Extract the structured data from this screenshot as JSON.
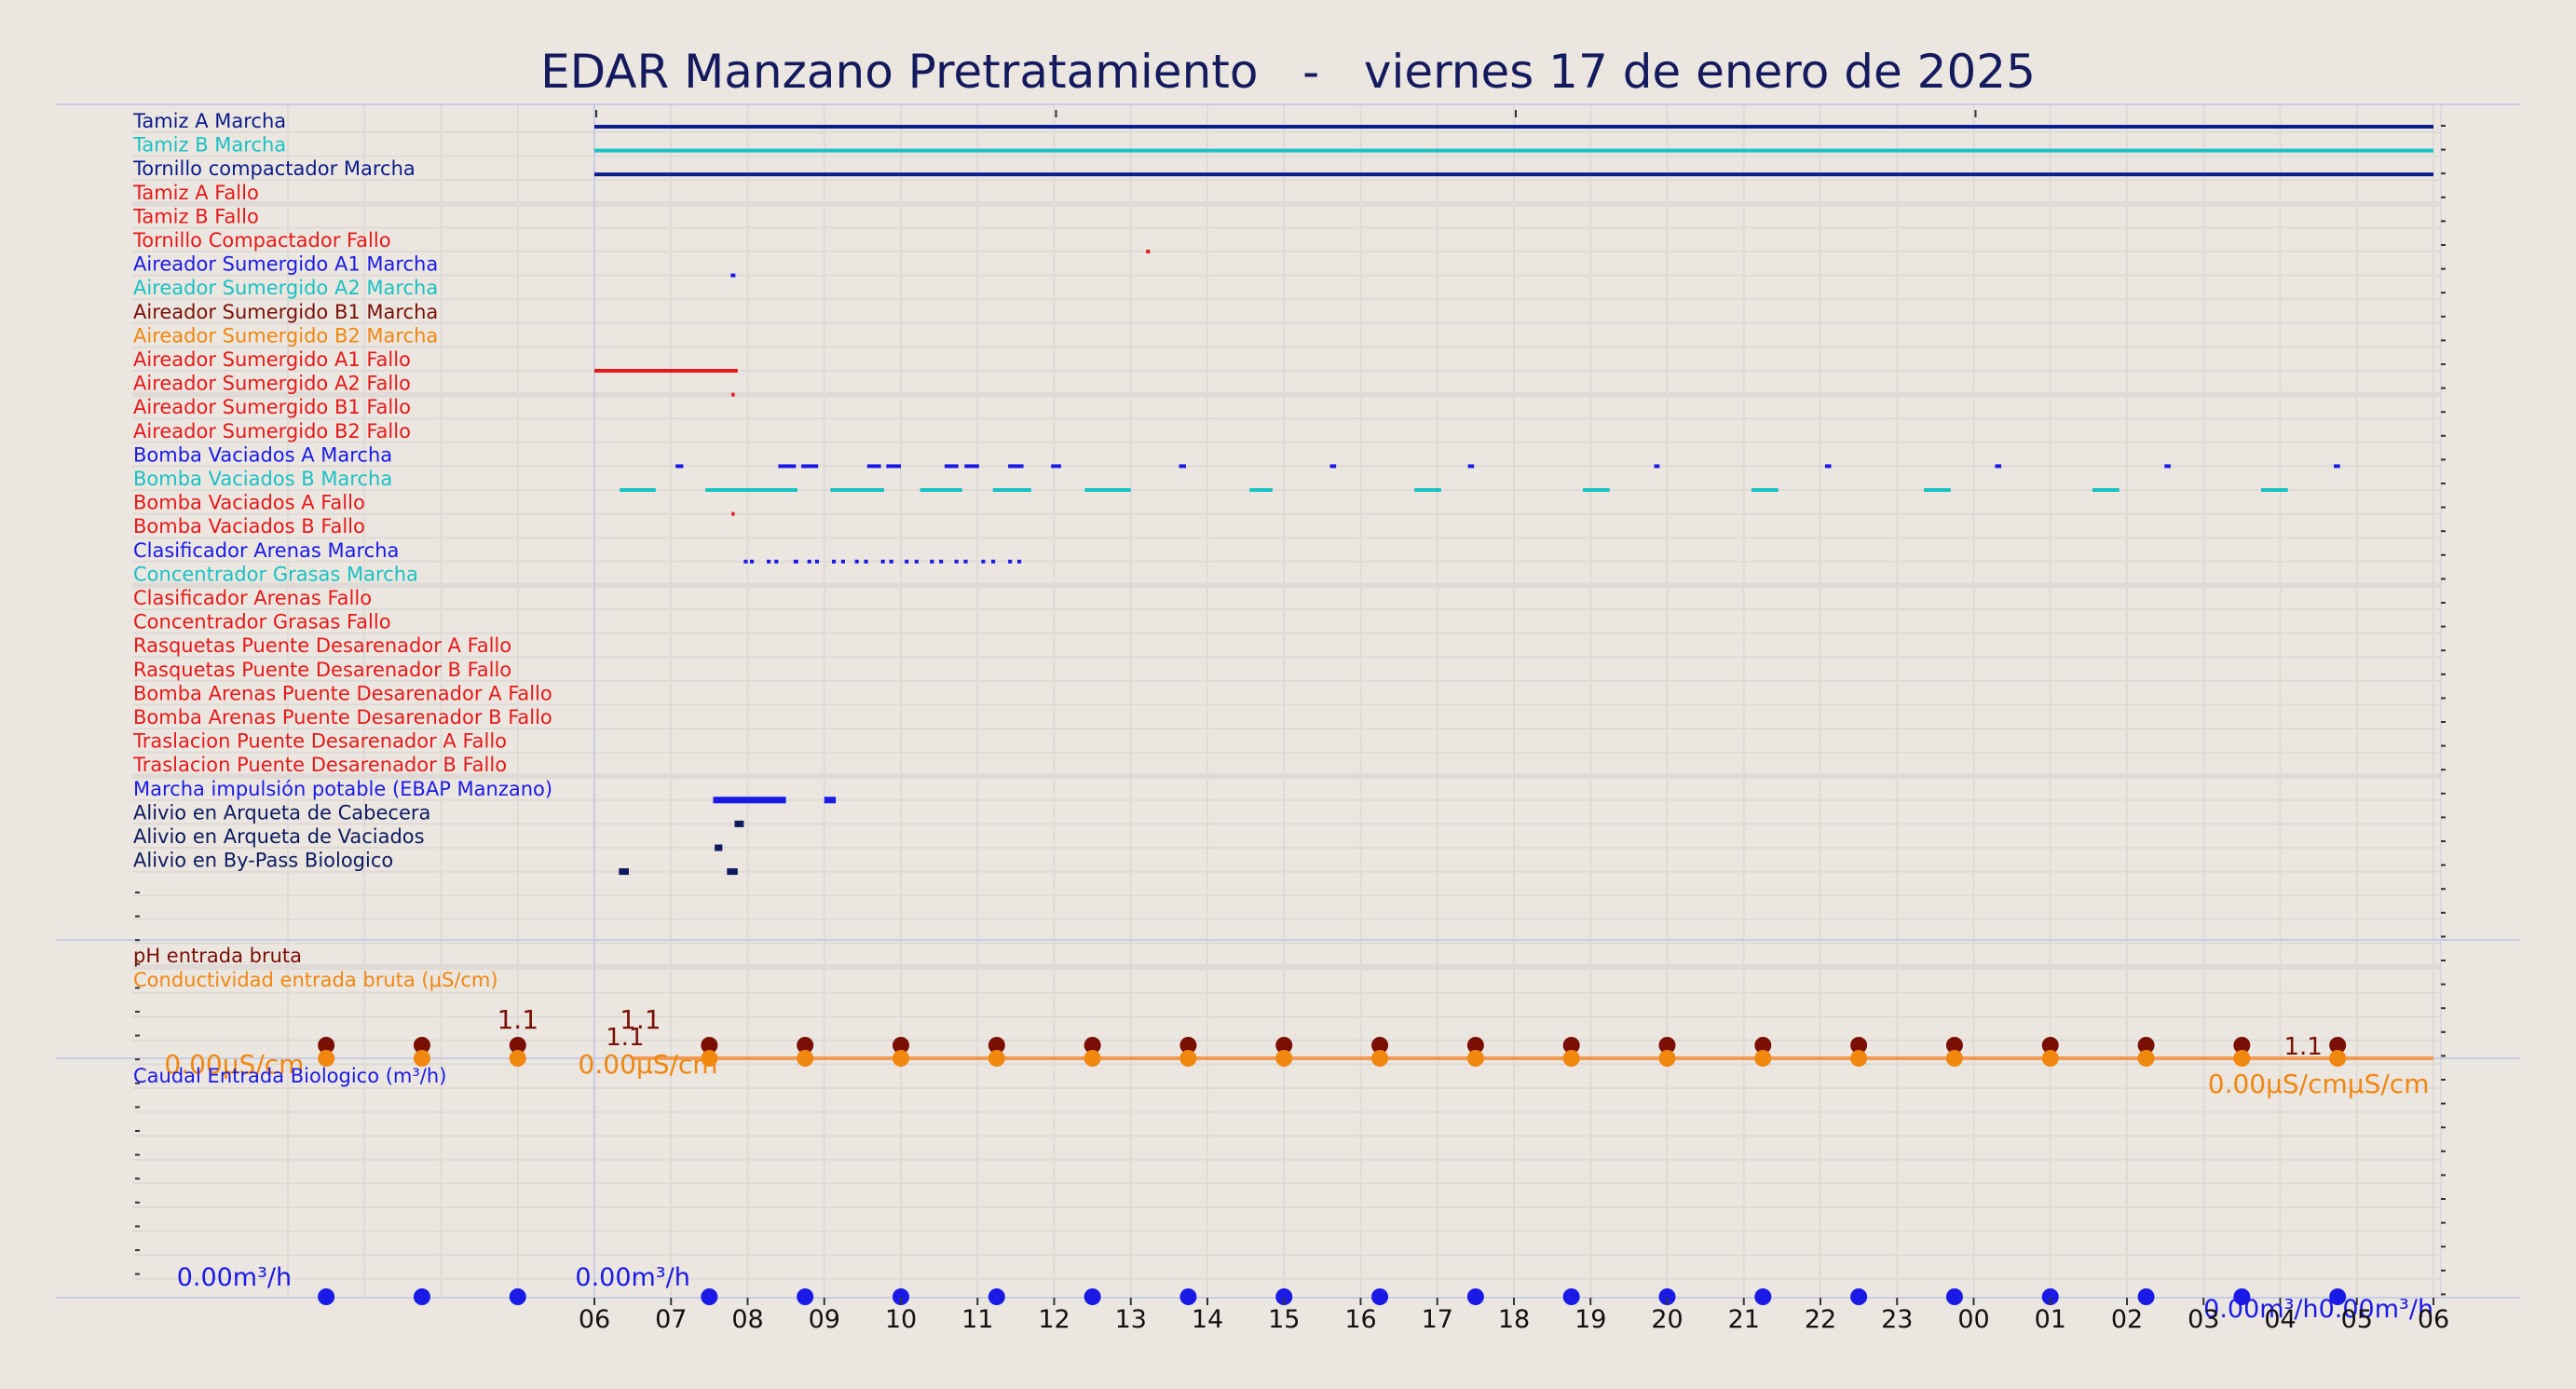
{
  "title": "EDAR Manzano Pretratamiento   -   viernes 17 de enero de 2025",
  "colors": {
    "background": "#ebe6e0",
    "grid": "#dfdad5",
    "frame": "#c8cde6",
    "title": "#141a5e",
    "navy": "#0b1c8c",
    "blue": "#1a1ae6",
    "cyan": "#19c2c4",
    "maroon": "#7a0f06",
    "orange": "#f0870f",
    "red": "#e61919",
    "dark_navy": "#0d1a60"
  },
  "chart_data": [
    {
      "type": "digital-timeline",
      "x_ticks": [
        "06",
        "07",
        "08",
        "09",
        "10",
        "11",
        "12",
        "13",
        "14",
        "15",
        "16",
        "17",
        "18",
        "19",
        "20",
        "21",
        "22",
        "23",
        "00",
        "01",
        "02",
        "03",
        "04",
        "05",
        "06"
      ],
      "signals": [
        {
          "label": "Tamiz A Marcha",
          "color": "#0b1c8c",
          "on": [
            [
              0.0,
              24.0
            ]
          ]
        },
        {
          "label": "Tamiz B Marcha",
          "color": "#19c2c4",
          "on": [
            [
              0.0,
              24.0
            ]
          ]
        },
        {
          "label": "Tornillo compactador Marcha",
          "color": "#0b1c8c",
          "on": [
            [
              0.0,
              24.0
            ]
          ]
        },
        {
          "label": "Tamiz A Fallo",
          "color": "#e61919",
          "on": []
        },
        {
          "label": "Tamiz B Fallo",
          "color": "#e61919",
          "on": []
        },
        {
          "label": "Tornillo Compactador Fallo",
          "color": "#e61919",
          "on": [
            [
              7.2,
              7.25
            ]
          ]
        },
        {
          "label": "Aireador Sumergido A1 Marcha",
          "color": "#1a1ae6",
          "on": [
            [
              1.78,
              1.84
            ]
          ]
        },
        {
          "label": "Aireador Sumergido A2 Marcha",
          "color": "#19c2c4",
          "on": []
        },
        {
          "label": "Aireador Sumergido B1 Marcha",
          "color": "#7a0f06",
          "on": []
        },
        {
          "label": "Aireador Sumergido B2 Marcha",
          "color": "#f0870f",
          "on": []
        },
        {
          "label": "Aireador Sumergido A1 Fallo",
          "color": "#e61919",
          "on": [
            [
              0.0,
              1.87
            ]
          ]
        },
        {
          "label": "Aireador Sumergido A2 Fallo",
          "color": "#e61919",
          "on": [
            [
              1.79,
              1.83
            ]
          ]
        },
        {
          "label": "Aireador Sumergido B1 Fallo",
          "color": "#e61919",
          "on": []
        },
        {
          "label": "Aireador Sumergido B2 Fallo",
          "color": "#e61919",
          "on": []
        },
        {
          "label": "Bomba Vaciados A Marcha",
          "color": "#1a1ae6",
          "on": [
            [
              1.06,
              1.16
            ],
            [
              2.4,
              2.63
            ],
            [
              2.7,
              2.92
            ],
            [
              3.56,
              3.74
            ],
            [
              3.81,
              4.0
            ],
            [
              4.57,
              4.75
            ],
            [
              4.83,
              5.02
            ],
            [
              5.4,
              5.6
            ],
            [
              5.96,
              6.09
            ],
            [
              7.63,
              7.72
            ],
            [
              9.6,
              9.68
            ],
            [
              11.4,
              11.48
            ],
            [
              13.83,
              13.9
            ],
            [
              16.06,
              16.14
            ],
            [
              18.28,
              18.36
            ],
            [
              20.49,
              20.57
            ],
            [
              22.7,
              22.78
            ]
          ]
        },
        {
          "label": "Bomba Vaciados B Marcha",
          "color": "#19c2c4",
          "on": [
            [
              0.33,
              0.8
            ],
            [
              1.45,
              2.65
            ],
            [
              3.08,
              3.78
            ],
            [
              4.25,
              4.8
            ],
            [
              5.2,
              5.7
            ],
            [
              6.4,
              7.0
            ],
            [
              8.55,
              8.85
            ],
            [
              10.7,
              11.05
            ],
            [
              12.9,
              13.25
            ],
            [
              15.1,
              15.45
            ],
            [
              17.35,
              17.7
            ],
            [
              19.55,
              19.9
            ],
            [
              21.75,
              22.1
            ]
          ]
        },
        {
          "label": "Bomba Vaciados A Fallo",
          "color": "#e61919",
          "on": [
            [
              1.79,
              1.83
            ]
          ]
        },
        {
          "label": "Bomba Vaciados B Fallo",
          "color": "#e61919",
          "on": []
        },
        {
          "label": "Clasificador Arenas Marcha",
          "color": "#1a1ae6",
          "on": [
            [
              1.95,
              2.0
            ],
            [
              2.03,
              2.08
            ],
            [
              2.25,
              2.3
            ],
            [
              2.35,
              2.4
            ],
            [
              2.6,
              2.66
            ],
            [
              2.78,
              2.83
            ],
            [
              2.88,
              2.93
            ],
            [
              3.1,
              3.15
            ],
            [
              3.22,
              3.27
            ],
            [
              3.4,
              3.45
            ],
            [
              3.52,
              3.57
            ],
            [
              3.74,
              3.79
            ],
            [
              3.85,
              3.9
            ],
            [
              4.05,
              4.1
            ],
            [
              4.18,
              4.23
            ],
            [
              4.38,
              4.43
            ],
            [
              4.5,
              4.55
            ],
            [
              4.7,
              4.75
            ],
            [
              4.82,
              4.87
            ],
            [
              5.05,
              5.1
            ],
            [
              5.18,
              5.23
            ],
            [
              5.4,
              5.45
            ],
            [
              5.52,
              5.57
            ]
          ]
        },
        {
          "label": "Concentrador Grasas Marcha",
          "color": "#19c2c4",
          "on": []
        },
        {
          "label": "Clasificador Arenas Fallo",
          "color": "#e61919",
          "on": []
        },
        {
          "label": "Concentrador Grasas Fallo",
          "color": "#e61919",
          "on": []
        },
        {
          "label": "Rasquetas Puente Desarenador A Fallo",
          "color": "#e61919",
          "on": []
        },
        {
          "label": "Rasquetas Puente Desarenador B Fallo",
          "color": "#e61919",
          "on": []
        },
        {
          "label": "Bomba Arenas Puente Desarenador A Fallo",
          "color": "#e61919",
          "on": []
        },
        {
          "label": "Bomba Arenas Puente Desarenador B Fallo",
          "color": "#e61919",
          "on": []
        },
        {
          "label": "Traslacion Puente Desarenador A Fallo",
          "color": "#e61919",
          "on": []
        },
        {
          "label": "Traslacion Puente Desarenador B Fallo",
          "color": "#e61919",
          "on": []
        },
        {
          "label": "Marcha impulsión potable (EBAP Manzano)",
          "color": "#1a1ae6",
          "on": [
            [
              1.55,
              2.5
            ],
            [
              3.0,
              3.15
            ]
          ]
        },
        {
          "label": "Alivio en Arqueta de Cabecera",
          "color": "#0d1a60",
          "on": [
            [
              1.83,
              1.95
            ]
          ]
        },
        {
          "label": "Alivio en Arqueta de Vaciados",
          "color": "#0d1a60",
          "on": [
            [
              1.57,
              1.67
            ]
          ]
        },
        {
          "label": "Alivio en By-Pass Biologico",
          "color": "#0d1a60",
          "on": [
            [
              0.32,
              0.45
            ],
            [
              1.73,
              1.87
            ]
          ]
        }
      ]
    },
    {
      "type": "scatter",
      "series": [
        {
          "name": "pH entrada bruta",
          "color": "#7a0f06",
          "x": [
            -3.5,
            -2.25,
            -1.0,
            1.5,
            2.75,
            4.0,
            5.25,
            6.5,
            7.75,
            9.0,
            10.25,
            11.5,
            12.75,
            14.0,
            15.25,
            16.5,
            17.75,
            19.0,
            20.25,
            21.5,
            22.75
          ],
          "y": [
            1.1,
            1.1,
            1.1,
            1.1,
            1.1,
            1.1,
            1.1,
            1.1,
            1.1,
            1.1,
            1.1,
            1.1,
            1.1,
            1.1,
            1.1,
            1.1,
            1.1,
            1.1,
            1.1,
            1.1,
            1.1
          ]
        },
        {
          "name": "Conductividad entrada bruta (μS/cm)",
          "color": "#f0870f",
          "x": [
            -3.5,
            -2.25,
            -1.0,
            1.5,
            2.75,
            4.0,
            5.25,
            6.5,
            7.75,
            9.0,
            10.25,
            11.5,
            12.75,
            14.0,
            15.25,
            16.5,
            17.75,
            19.0,
            20.25,
            21.5,
            22.75
          ],
          "y": [
            0,
            0,
            0,
            0,
            0,
            0,
            0,
            0,
            0,
            0,
            0,
            0,
            0,
            0,
            0,
            0,
            0,
            0,
            0,
            0,
            0
          ]
        }
      ],
      "value_labels": [
        {
          "text": "1.1",
          "series": "pH entrada bruta",
          "x": -1.0
        },
        {
          "text": "1.1",
          "series": "pH entrada bruta",
          "x": 0.6
        },
        {
          "text": "1.1",
          "series": "pH entrada bruta",
          "x": 0.4
        },
        {
          "text": "1.1",
          "series": "pH entrada bruta",
          "x": 22.3
        },
        {
          "text": "0.00μS/cm",
          "series": "Conductividad entrada bruta (μS/cm)",
          "x": -4.7
        },
        {
          "text": "0.00μS/cm",
          "series": "Conductividad entrada bruta (μS/cm)",
          "x": 0.7
        },
        {
          "text": "0.00μS/cmμS/cm",
          "series": "Conductividad entrada bruta (μS/cm)",
          "x": 22.5
        }
      ]
    },
    {
      "type": "scatter",
      "series": [
        {
          "name": "Caudal Entrada Biologico (m³/h)",
          "color": "#1a1ae6",
          "x": [
            -3.5,
            -2.25,
            -1.0,
            1.5,
            2.75,
            4.0,
            5.25,
            6.5,
            7.75,
            9.0,
            10.25,
            11.5,
            12.75,
            14.0,
            15.25,
            16.5,
            17.75,
            19.0,
            20.25,
            21.5,
            22.75
          ],
          "y": [
            0,
            0,
            0,
            0,
            0,
            0,
            0,
            0,
            0,
            0,
            0,
            0,
            0,
            0,
            0,
            0,
            0,
            0,
            0,
            0,
            0
          ]
        }
      ],
      "value_labels": [
        {
          "text": "0.00m³/h",
          "series": "Caudal Entrada Biologico (m³/h)",
          "x": -4.7
        },
        {
          "text": "0.00m³/h",
          "series": "Caudal Entrada Biologico (m³/h)",
          "x": 0.5
        },
        {
          "text": "0.00m³/h0.00m³/h",
          "series": "Caudal Entrada Biologico (m³/h)",
          "x": 22.5
        }
      ]
    }
  ]
}
